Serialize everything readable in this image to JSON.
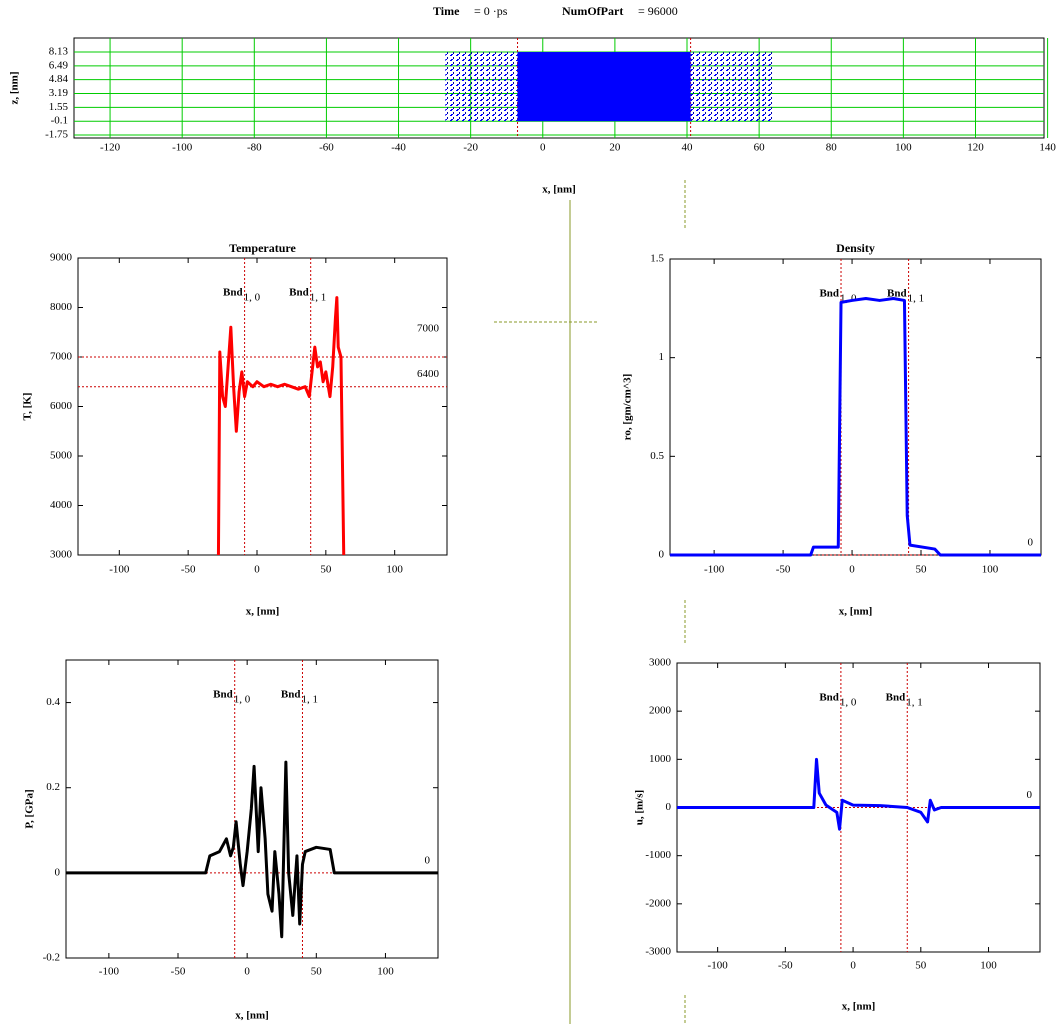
{
  "header": {
    "time_label": "Time",
    "time_value": "= 0 ·ps",
    "part_label": "NumOfPart",
    "part_value": "= 96000"
  },
  "chart_data": [
    {
      "type": "particles",
      "xlabel": "x, [nm]",
      "ylabel": "z, [nm]",
      "color": "#0000ff",
      "grid": true,
      "xlim": [
        -130,
        139
      ],
      "xticks": [
        -120,
        -100,
        -80,
        -60,
        -40,
        -20,
        0,
        20,
        40,
        60,
        80,
        100,
        120,
        140
      ],
      "ylim": [
        -2.1,
        9.8
      ],
      "yticks": [
        8.13,
        6.49,
        4.84,
        3.19,
        1.55,
        -0.1,
        -1.75
      ],
      "dense_x": [
        -7,
        41
      ],
      "sparse_x": [
        -27,
        64
      ],
      "z_range": [
        -0.1,
        8.13
      ],
      "vlines": [
        {
          "x": -7
        },
        {
          "x": 41
        }
      ]
    },
    {
      "type": "line",
      "title": "Temperature",
      "xlabel": "x, [nm]",
      "ylabel": "T, [K]",
      "color": "#ff0000",
      "grid": false,
      "xlim": [
        -130,
        138
      ],
      "xticks": [
        -100,
        -50,
        0,
        50,
        100
      ],
      "ylim": [
        3000,
        9000
      ],
      "yticks": [
        3000,
        4000,
        5000,
        6000,
        7000,
        8000,
        9000
      ],
      "x": [
        -28,
        -27,
        -25,
        -23,
        -21,
        -19,
        -17,
        -15,
        -13,
        -11,
        -9,
        -7,
        -3,
        0,
        5,
        10,
        15,
        20,
        25,
        30,
        35,
        38,
        40,
        42,
        44,
        46,
        48,
        50,
        53,
        55,
        57,
        58,
        59,
        61,
        62,
        63
      ],
      "values": [
        3000,
        7100,
        6200,
        6000,
        6800,
        7600,
        6400,
        5500,
        6300,
        6700,
        6200,
        6500,
        6400,
        6500,
        6400,
        6450,
        6400,
        6450,
        6400,
        6350,
        6400,
        6200,
        6700,
        7200,
        6800,
        6900,
        6500,
        6700,
        6200,
        6800,
        7800,
        8200,
        7200,
        7000,
        5000,
        3000
      ],
      "vlines": [
        {
          "x": -9,
          "label": "Bnd",
          "subscript": "1, 0"
        },
        {
          "x": 39,
          "label": "Bnd",
          "subscript": "1, 1"
        }
      ],
      "hlines": [
        7000,
        6400
      ]
    },
    {
      "type": "line",
      "title": "Density",
      "xlabel": "x, [nm]",
      "ylabel": "ro, [gm/cm^3]",
      "color": "#0000ff",
      "grid": false,
      "xlim": [
        -132,
        137
      ],
      "xticks": [
        -100,
        -50,
        0,
        50,
        100
      ],
      "ylim": [
        0,
        1.5
      ],
      "yticks": [
        0,
        0.5,
        1,
        1.5
      ],
      "x": [
        -132,
        -30,
        -28,
        -10,
        -8,
        0,
        10,
        20,
        30,
        38,
        40,
        42,
        60,
        64,
        137
      ],
      "values": [
        0,
        0,
        0.04,
        0.04,
        1.28,
        1.29,
        1.3,
        1.29,
        1.3,
        1.29,
        0.2,
        0.05,
        0.03,
        0,
        0
      ],
      "vlines": [
        {
          "x": -8,
          "label": "Bnd",
          "subscript": "1, 0"
        },
        {
          "x": 41,
          "label": "Bnd",
          "subscript": "1, 1"
        }
      ],
      "hlines": [
        0
      ]
    },
    {
      "type": "line",
      "xlabel": "x, [nm]",
      "ylabel": "P, [GPa]",
      "color": "#000000",
      "grid": false,
      "xlim": [
        -131,
        138
      ],
      "xticks": [
        -100,
        -50,
        0,
        50,
        100
      ],
      "ylim": [
        -0.2,
        0.5
      ],
      "yticks": [
        -0.2,
        0,
        0.2,
        0.4
      ],
      "x": [
        -131,
        -30,
        -27,
        -20,
        -15,
        -12,
        -10,
        -8,
        -5,
        -3,
        0,
        3,
        5,
        8,
        10,
        13,
        15,
        18,
        20,
        23,
        25,
        28,
        30,
        33,
        36,
        38,
        40,
        42,
        50,
        60,
        63,
        138
      ],
      "values": [
        0,
        0,
        0.04,
        0.05,
        0.08,
        0.04,
        0.06,
        0.12,
        0.02,
        -0.03,
        0.05,
        0.15,
        0.25,
        0.05,
        0.2,
        0.08,
        -0.05,
        -0.09,
        0.05,
        -0.05,
        -0.15,
        0.26,
        0,
        -0.1,
        0.04,
        -0.12,
        0.02,
        0.05,
        0.06,
        0.055,
        0,
        0
      ],
      "vlines": [
        {
          "x": -9,
          "label": "Bnd",
          "subscript": "1, 0"
        },
        {
          "x": 40,
          "label": "Bnd",
          "subscript": "1, 1"
        }
      ],
      "hlines": [
        0
      ]
    },
    {
      "type": "line",
      "xlabel": "x, [nm]",
      "ylabel": "u, [m/s]",
      "color": "#0000ff",
      "grid": false,
      "xlim": [
        -130,
        138
      ],
      "xticks": [
        -100,
        -50,
        0,
        50,
        100
      ],
      "ylim": [
        -3000,
        3000
      ],
      "yticks": [
        -3000,
        -2000,
        -1000,
        0,
        1000,
        2000,
        3000
      ],
      "x": [
        -130,
        -29,
        -27,
        -25,
        -20,
        -12,
        -10,
        -8,
        0,
        20,
        40,
        50,
        55,
        57,
        60,
        65,
        138
      ],
      "values": [
        0,
        0,
        1000,
        300,
        50,
        -100,
        -450,
        150,
        50,
        40,
        0,
        -100,
        -300,
        150,
        -50,
        0,
        0
      ],
      "vlines": [
        {
          "x": -9,
          "label": "Bnd",
          "subscript": "1, 0"
        },
        {
          "x": 40,
          "label": "Bnd",
          "subscript": "1, 1"
        }
      ],
      "hlines": [
        0
      ]
    }
  ]
}
